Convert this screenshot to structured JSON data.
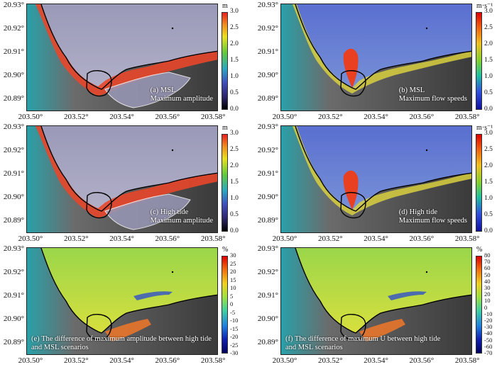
{
  "lat_ticks": [
    "20.93°",
    "20.92°",
    "20.91°",
    "20.90°",
    "20.89°"
  ],
  "lon_ticks": [
    "203.50°",
    "203.52°",
    "203.54°",
    "203.56°",
    "203.58°"
  ],
  "panels": [
    {
      "id": "a",
      "cap1": "(a) MSL",
      "cap2": "Maximum amplitude",
      "unit": "m",
      "ticks": [
        "3.0",
        "2.5",
        "2.0",
        "1.5",
        "1.0",
        "0.5",
        "0.0"
      ],
      "cmap": "amp"
    },
    {
      "id": "b",
      "cap1": "(b) MSL",
      "cap2": "Maximum flow speeds",
      "unit": "m·s⁻¹",
      "ticks": [
        "3.0",
        "2.5",
        "2.0",
        "1.5",
        "1.0",
        "0.5",
        "0.0"
      ],
      "cmap": "speed"
    },
    {
      "id": "c",
      "cap1": "(c) High tide",
      "cap2": "Maximum amplitude",
      "unit": "m",
      "ticks": [
        "3.0",
        "2.5",
        "2.0",
        "1.5",
        "1.0",
        "0.5",
        "0.0"
      ],
      "cmap": "amp"
    },
    {
      "id": "d",
      "cap1": "(d) High tide",
      "cap2": "Maximum flow speeds",
      "unit": "m·s⁻¹",
      "ticks": [
        "3.0",
        "2.5",
        "2.0",
        "1.5",
        "1.0",
        "0.5",
        "0.0"
      ],
      "cmap": "speed"
    },
    {
      "id": "e",
      "cap1": "(e) The difference of maximum amplitude between high tide",
      "cap2": "and MSL scenarios",
      "unit": "%",
      "ticks": [
        "30",
        "25",
        "20",
        "15",
        "10",
        "5",
        "0",
        "-5",
        "-10",
        "-15",
        "-20",
        "-25",
        "-30"
      ],
      "cmap": "diff"
    },
    {
      "id": "f",
      "cap1": "(f) The difference of maximum U between high tide",
      "cap2": "and MSL scenarios",
      "unit": "%",
      "ticks": [
        "80",
        "70",
        "60",
        "50",
        "40",
        "30",
        "20",
        "10",
        "0",
        "-10",
        "-20",
        "-30",
        "-40",
        "-50",
        "-60",
        "-70"
      ],
      "cmap": "diff"
    }
  ],
  "colors": {
    "land_dark": "#3a3a3a",
    "land_mid": "#6b6b6b",
    "sea_teal": "#2aa0a8",
    "amp_sea": "#9a99b8",
    "amp_red": "#e8472a",
    "speed_sea": "#5a6fd0",
    "diff_green": "#9ad64a",
    "diff_yellow": "#e8e23a",
    "coast": "#000000"
  }
}
